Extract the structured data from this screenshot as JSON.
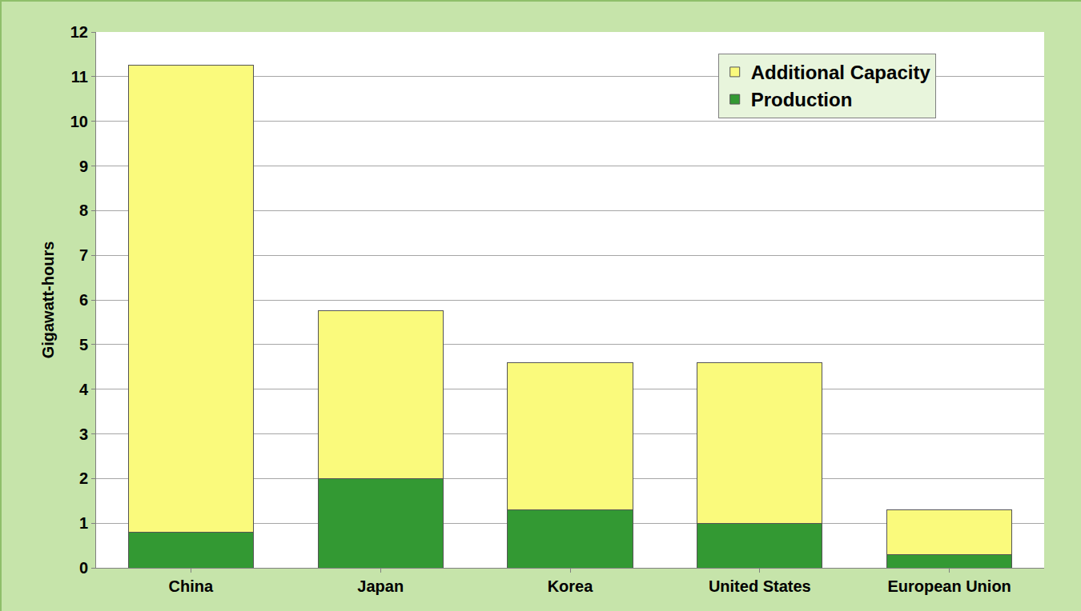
{
  "chart_data": {
    "type": "bar",
    "stacked": true,
    "categories": [
      "China",
      "Japan",
      "Korea",
      "United States",
      "European Union"
    ],
    "series": [
      {
        "name": "Production",
        "color": "#339933",
        "values": [
          0.8,
          2.0,
          1.3,
          1.0,
          0.3
        ]
      },
      {
        "name": "Additional Capacity",
        "color": "#fafa7c",
        "values": [
          10.45,
          3.75,
          3.3,
          3.6,
          1.0
        ]
      }
    ],
    "y_label": "Gigawatt-hours",
    "ylim": [
      0,
      12
    ],
    "yticks": [
      0,
      1,
      2,
      3,
      4,
      5,
      6,
      7,
      8,
      9,
      10,
      11,
      12
    ],
    "grid": true,
    "legend": "top-right"
  }
}
